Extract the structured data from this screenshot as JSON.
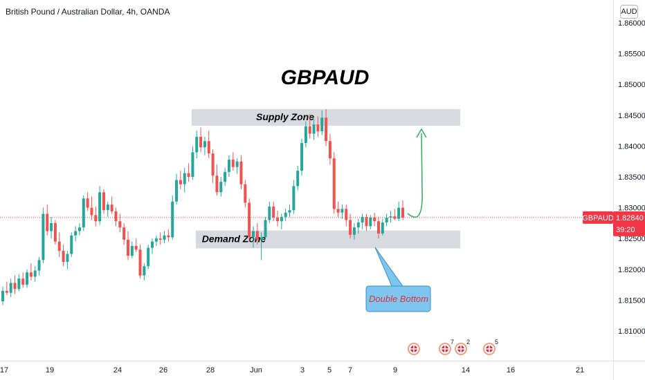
{
  "header": {
    "symbol_title": "British Pound / Australian Dollar, 4h, OANDA",
    "currency_button": "AUD"
  },
  "chart_data": {
    "type": "candlestick",
    "title": "GBPAUD",
    "symbol": "GBPAUD",
    "last_price": "1.82840",
    "countdown": "39:20",
    "y_ticks": [
      "1.86000",
      "1.85500",
      "1.85000",
      "1.84500",
      "1.84000",
      "1.83500",
      "1.83000",
      "1.82500",
      "1.82000",
      "1.81500",
      "1.81000"
    ],
    "x_ticks": [
      "17",
      "19",
      "24",
      "26",
      "28",
      "Jun",
      "3",
      "5",
      "7",
      "9",
      "14",
      "16",
      "21"
    ],
    "ylim": [
      1.805,
      1.8625
    ],
    "zones": [
      {
        "label": "Supply Zone",
        "low": 1.8433,
        "high": 1.846
      },
      {
        "label": "Demand Zone",
        "low": 1.8234,
        "high": 1.8263
      }
    ],
    "annotations": [
      {
        "text": "Double Bottom",
        "type": "callout"
      },
      {
        "text": "projected rise arrow",
        "type": "arrow"
      }
    ],
    "event_badges": [
      {
        "count": ""
      },
      {
        "count": "7"
      },
      {
        "count": "2"
      },
      {
        "count": "5"
      }
    ],
    "colors": {
      "up": "#26a69a",
      "down": "#ef5350",
      "zone_fill": "#d1d4dc",
      "arrow": "#3cae6c",
      "callout_fill": "#7ec6f0",
      "price_tag": "#f23645"
    },
    "candles": [
      [
        1.8148,
        1.8172,
        1.8142,
        1.8165
      ],
      [
        1.8165,
        1.818,
        1.8158,
        1.8162
      ],
      [
        1.8162,
        1.8185,
        1.8155,
        1.8178
      ],
      [
        1.8178,
        1.819,
        1.816,
        1.8168
      ],
      [
        1.8168,
        1.8192,
        1.8165,
        1.8185
      ],
      [
        1.8185,
        1.8195,
        1.817,
        1.8175
      ],
      [
        1.8175,
        1.82,
        1.817,
        1.8195
      ],
      [
        1.8195,
        1.821,
        1.8182,
        1.8188
      ],
      [
        1.8188,
        1.8205,
        1.818,
        1.8198
      ],
      [
        1.8198,
        1.822,
        1.819,
        1.8215
      ],
      [
        1.8215,
        1.83,
        1.821,
        1.829
      ],
      [
        1.829,
        1.8305,
        1.8255,
        1.8262
      ],
      [
        1.8262,
        1.8285,
        1.825,
        1.8275
      ],
      [
        1.8275,
        1.828,
        1.824,
        1.8245
      ],
      [
        1.8245,
        1.826,
        1.822,
        1.823
      ],
      [
        1.823,
        1.824,
        1.8205,
        1.8212
      ],
      [
        1.8212,
        1.823,
        1.82,
        1.8225
      ],
      [
        1.8225,
        1.826,
        1.822,
        1.8255
      ],
      [
        1.8255,
        1.827,
        1.8245,
        1.8262
      ],
      [
        1.8262,
        1.8275,
        1.8255,
        1.8268
      ],
      [
        1.8268,
        1.832,
        1.8262,
        1.8315
      ],
      [
        1.8315,
        1.8325,
        1.8295,
        1.83
      ],
      [
        1.83,
        1.8318,
        1.828,
        1.8288
      ],
      [
        1.8288,
        1.8302,
        1.827,
        1.8278
      ],
      [
        1.8278,
        1.8335,
        1.8272,
        1.8325
      ],
      [
        1.8325,
        1.833,
        1.829,
        1.8296
      ],
      [
        1.8296,
        1.831,
        1.8285,
        1.8305
      ],
      [
        1.8305,
        1.8318,
        1.829,
        1.8294
      ],
      [
        1.8294,
        1.83,
        1.827,
        1.8278
      ],
      [
        1.8278,
        1.829,
        1.826,
        1.8268
      ],
      [
        1.8268,
        1.8275,
        1.824,
        1.8248
      ],
      [
        1.8248,
        1.8262,
        1.8215,
        1.8222
      ],
      [
        1.8222,
        1.8245,
        1.8218,
        1.8238
      ],
      [
        1.8238,
        1.825,
        1.8228,
        1.8232
      ],
      [
        1.8232,
        1.824,
        1.8185,
        1.819
      ],
      [
        1.819,
        1.821,
        1.8182,
        1.8205
      ],
      [
        1.8205,
        1.824,
        1.82,
        1.8235
      ],
      [
        1.8235,
        1.825,
        1.8225,
        1.8245
      ],
      [
        1.8245,
        1.8255,
        1.8238,
        1.825
      ],
      [
        1.825,
        1.826,
        1.824,
        1.8248
      ],
      [
        1.8248,
        1.8262,
        1.8242,
        1.8255
      ],
      [
        1.8255,
        1.8265,
        1.8245,
        1.8252
      ],
      [
        1.8252,
        1.832,
        1.8248,
        1.831
      ],
      [
        1.831,
        1.8355,
        1.8305,
        1.8345
      ],
      [
        1.8345,
        1.836,
        1.833,
        1.8338
      ],
      [
        1.8338,
        1.8365,
        1.8325,
        1.8356
      ],
      [
        1.8356,
        1.8372,
        1.8342,
        1.835
      ],
      [
        1.835,
        1.84,
        1.8345,
        1.839
      ],
      [
        1.839,
        1.8425,
        1.838,
        1.8415
      ],
      [
        1.8415,
        1.843,
        1.839,
        1.8398
      ],
      [
        1.8398,
        1.8415,
        1.8385,
        1.8408
      ],
      [
        1.8408,
        1.8425,
        1.838,
        1.8388
      ],
      [
        1.8388,
        1.8395,
        1.834,
        1.8352
      ],
      [
        1.8352,
        1.837,
        1.832,
        1.8325
      ],
      [
        1.8325,
        1.835,
        1.8318,
        1.8342
      ],
      [
        1.8342,
        1.8365,
        1.8335,
        1.8358
      ],
      [
        1.8358,
        1.8385,
        1.835,
        1.8378
      ],
      [
        1.8378,
        1.839,
        1.836,
        1.8366
      ],
      [
        1.8366,
        1.838,
        1.8355,
        1.8375
      ],
      [
        1.8375,
        1.8385,
        1.833,
        1.8338
      ],
      [
        1.8338,
        1.8345,
        1.83,
        1.8308
      ],
      [
        1.8308,
        1.8315,
        1.8245,
        1.8252
      ],
      [
        1.8252,
        1.827,
        1.8235,
        1.8262
      ],
      [
        1.8262,
        1.8275,
        1.824,
        1.8248
      ],
      [
        1.8248,
        1.826,
        1.8215,
        1.8252
      ],
      [
        1.8252,
        1.8285,
        1.8248,
        1.828
      ],
      [
        1.828,
        1.831,
        1.8275,
        1.8302
      ],
      [
        1.8302,
        1.831,
        1.8278,
        1.8284
      ],
      [
        1.8284,
        1.8295,
        1.827,
        1.8278
      ],
      [
        1.8278,
        1.829,
        1.8265,
        1.8285
      ],
      [
        1.8285,
        1.8298,
        1.8278,
        1.8292
      ],
      [
        1.8292,
        1.8305,
        1.8285,
        1.8296
      ],
      [
        1.8296,
        1.8345,
        1.829,
        1.8335
      ],
      [
        1.8335,
        1.8368,
        1.8328,
        1.836
      ],
      [
        1.836,
        1.8412,
        1.8352,
        1.8405
      ],
      [
        1.8405,
        1.844,
        1.8398,
        1.8432
      ],
      [
        1.8432,
        1.8452,
        1.8412,
        1.842
      ],
      [
        1.842,
        1.8445,
        1.841,
        1.8435
      ],
      [
        1.8435,
        1.8448,
        1.8415,
        1.8424
      ],
      [
        1.8424,
        1.8458,
        1.8418,
        1.8446
      ],
      [
        1.8446,
        1.846,
        1.84,
        1.8408
      ],
      [
        1.8408,
        1.842,
        1.837,
        1.838
      ],
      [
        1.838,
        1.839,
        1.829,
        1.8298
      ],
      [
        1.8298,
        1.831,
        1.8285,
        1.8292
      ],
      [
        1.8292,
        1.8305,
        1.8282,
        1.8298
      ],
      [
        1.8298,
        1.8305,
        1.827,
        1.828
      ],
      [
        1.828,
        1.829,
        1.825,
        1.8256
      ],
      [
        1.8256,
        1.8275,
        1.8248,
        1.8268
      ],
      [
        1.8268,
        1.8282,
        1.8258,
        1.8276
      ],
      [
        1.8276,
        1.829,
        1.8265,
        1.8285
      ],
      [
        1.8285,
        1.829,
        1.8262,
        1.827
      ],
      [
        1.827,
        1.8288,
        1.8265,
        1.8284
      ],
      [
        1.8284,
        1.8292,
        1.827,
        1.8278
      ],
      [
        1.8278,
        1.8285,
        1.825,
        1.8258
      ],
      [
        1.8258,
        1.8282,
        1.8255,
        1.8276
      ],
      [
        1.8276,
        1.829,
        1.827,
        1.8284
      ],
      [
        1.8284,
        1.8295,
        1.8276,
        1.8286
      ],
      [
        1.8286,
        1.8298,
        1.828,
        1.8282
      ],
      [
        1.8282,
        1.831,
        1.8278,
        1.83
      ],
      [
        1.83,
        1.8312,
        1.828,
        1.8284
      ]
    ]
  }
}
